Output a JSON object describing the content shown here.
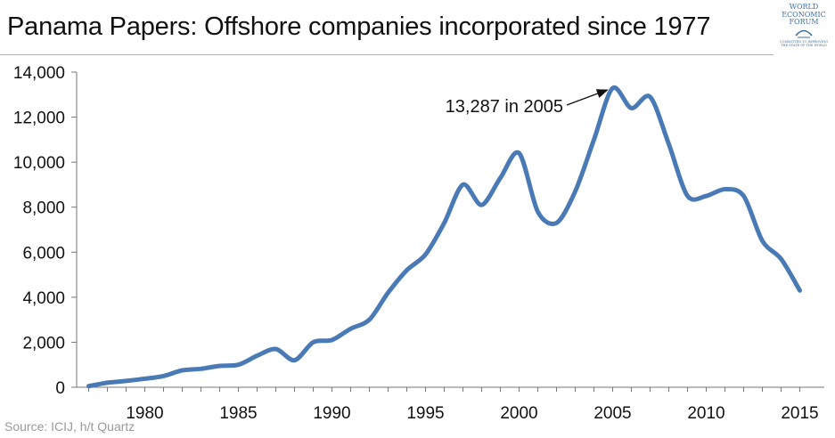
{
  "header": {
    "title": "Panama Papers: Offshore companies incorporated since 1977"
  },
  "logo": {
    "line1": "WORLD",
    "line2": "ECONOMIC",
    "line3": "FORUM",
    "tagline": "COMMITTED TO IMPROVING THE STATE OF THE WORLD",
    "icon": "wef-arc-logo"
  },
  "footer": {
    "source": "Source: ICIJ, h/t Quartz"
  },
  "chart_data": {
    "type": "line",
    "title": "Panama Papers: Offshore companies incorporated since 1977",
    "xlabel": "",
    "ylabel": "",
    "xlim": [
      1977,
      2015
    ],
    "ylim": [
      0,
      14000
    ],
    "x_ticks": [
      1980,
      1985,
      1990,
      1995,
      2000,
      2005,
      2010,
      2015
    ],
    "x_tick_labels": [
      "1980",
      "1985",
      "1990",
      "1995",
      "2000",
      "2005",
      "2010",
      "2015"
    ],
    "y_ticks": [
      0,
      2000,
      4000,
      6000,
      8000,
      10000,
      12000,
      14000
    ],
    "y_tick_labels": [
      "0",
      "2,000",
      "4,000",
      "6,000",
      "8,000",
      "10,000",
      "12,000",
      "14,000"
    ],
    "grid": false,
    "color": "#4a7ab5",
    "series": [
      {
        "x": [
          1977,
          1978,
          1979,
          1980,
          1981,
          1982,
          1983,
          1984,
          1985,
          1986,
          1987,
          1988,
          1989,
          1990,
          1991,
          1992,
          1993,
          1994,
          1995,
          1996,
          1997,
          1998,
          1999,
          2000,
          2001,
          2002,
          2003,
          2004,
          2005,
          2006,
          2007,
          2008,
          2009,
          2010,
          2011,
          2012,
          2013,
          2014,
          2015
        ],
        "values": [
          50,
          200,
          280,
          380,
          500,
          750,
          820,
          950,
          1000,
          1400,
          1700,
          1200,
          2000,
          2100,
          2600,
          3000,
          4200,
          5200,
          5900,
          7300,
          9000,
          8100,
          9300,
          10400,
          7800,
          7300,
          8700,
          11000,
          13287,
          12400,
          12900,
          10800,
          8500,
          8500,
          8800,
          8500,
          6500,
          5700,
          4300
        ]
      }
    ],
    "annotations": [
      {
        "text": "13,287 in 2005",
        "x": 2005,
        "y": 13287
      }
    ]
  }
}
